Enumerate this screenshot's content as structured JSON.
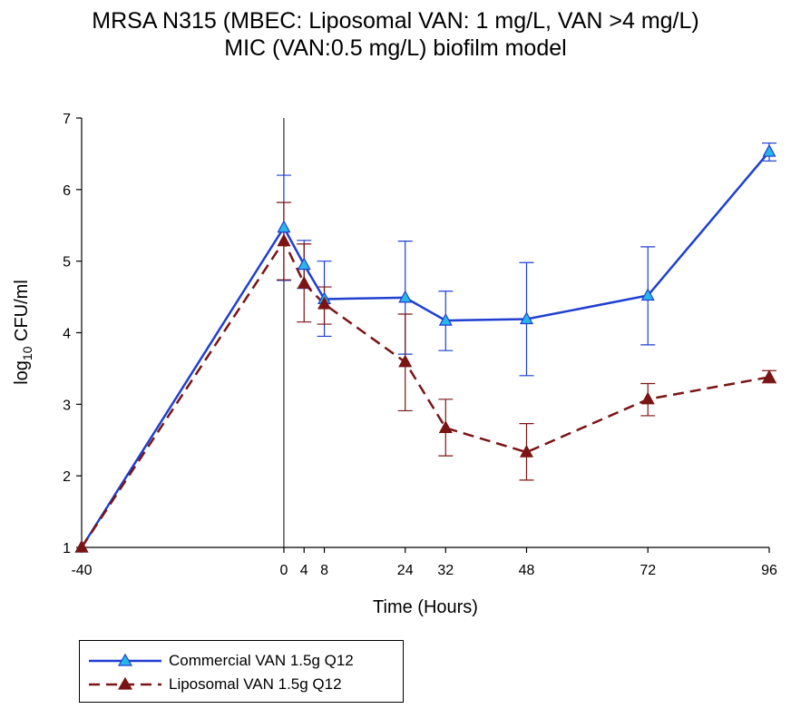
{
  "chart_data": {
    "type": "line",
    "title_line1": "MRSA N315 (MBEC: Liposomal VAN: 1 mg/L, VAN  >4 mg/L)",
    "title_line2": "MIC (VAN:0.5 mg/L) biofilm model",
    "xlabel": "Time (Hours)",
    "ylabel_main": "log",
    "ylabel_sub": "10",
    "ylabel_tail": " CFU/ml",
    "xlim": [
      -40,
      96
    ],
    "ylim": [
      1,
      7
    ],
    "xticks": [
      -40,
      0,
      4,
      8,
      24,
      32,
      48,
      72,
      96
    ],
    "yticks": [
      1,
      2,
      3,
      4,
      5,
      6,
      7
    ],
    "vline_x": 0,
    "series": [
      {
        "name": "Commercial  VAN 1.5g Q12",
        "color": "#1f3fd1",
        "marker_fill": "#29b6e8",
        "dash": "solid",
        "x": [
          -40,
          0,
          4,
          8,
          24,
          32,
          48,
          72,
          96
        ],
        "y": [
          1.0,
          5.47,
          4.95,
          4.47,
          4.49,
          4.17,
          4.19,
          4.52,
          6.53
        ],
        "err_low": [
          1.0,
          4.73,
          4.62,
          3.95,
          3.7,
          3.75,
          3.4,
          3.83,
          6.4
        ],
        "err_high": [
          1.0,
          6.2,
          5.29,
          5.0,
          5.28,
          4.58,
          4.98,
          5.2,
          6.65
        ]
      },
      {
        "name": "Liposomal VAN 1.5g Q12",
        "color": "#7b1414",
        "marker_fill": "#7b1414",
        "dash": "dashed",
        "x": [
          -40,
          0,
          4,
          8,
          24,
          32,
          48,
          72,
          96
        ],
        "y": [
          1.0,
          5.28,
          4.69,
          4.4,
          3.59,
          2.67,
          2.33,
          3.07,
          3.38
        ],
        "err_low": [
          1.0,
          4.74,
          4.15,
          4.12,
          2.91,
          2.28,
          1.94,
          2.84,
          3.3
        ],
        "err_high": [
          1.0,
          5.82,
          5.24,
          4.64,
          4.26,
          3.07,
          2.73,
          3.29,
          3.47
        ]
      }
    ]
  }
}
